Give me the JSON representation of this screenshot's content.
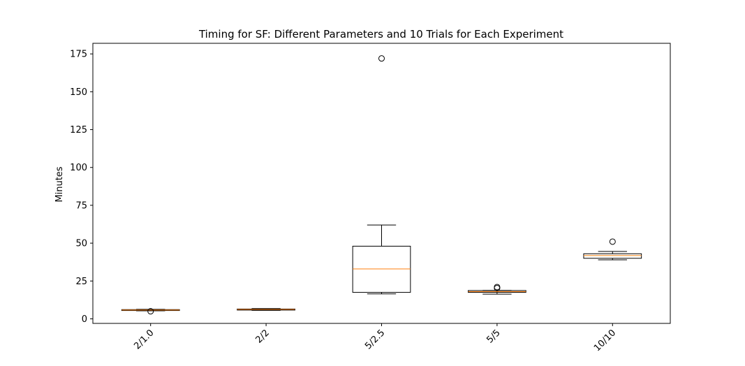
{
  "chart_data": {
    "type": "box",
    "title": "Timing for SF: Different Parameters and 10 Trials for Each Experiment",
    "xlabel": "",
    "ylabel": "Minutes",
    "ylim": [
      -3,
      182
    ],
    "yticks": [
      0,
      25,
      50,
      75,
      100,
      125,
      150,
      175
    ],
    "grid": false,
    "categories": [
      "2/1.0",
      "2/2",
      "5/2.5",
      "5/5",
      "10/10"
    ],
    "series": [
      {
        "boxes": [
          {
            "category": "2/1.0",
            "whisker_low": 5.3,
            "q1": 5.5,
            "median": 5.8,
            "q3": 6.1,
            "whisker_high": 6.3,
            "outliers": [
              5.0
            ]
          },
          {
            "category": "2/2",
            "whisker_low": 5.6,
            "q1": 5.8,
            "median": 6.2,
            "q3": 6.5,
            "whisker_high": 6.8,
            "outliers": []
          },
          {
            "category": "5/2.5",
            "whisker_low": 16.5,
            "q1": 17.5,
            "median": 33.0,
            "q3": 48.0,
            "whisker_high": 62.0,
            "outliers": [
              172.0
            ]
          },
          {
            "category": "5/5",
            "whisker_low": 16.3,
            "q1": 17.5,
            "median": 18.0,
            "q3": 18.7,
            "whisker_high": 18.8,
            "outliers": [
              20.3,
              21.0
            ]
          },
          {
            "category": "10/10",
            "whisker_low": 39.0,
            "q1": 40.0,
            "median": 41.8,
            "q3": 43.0,
            "whisker_high": 44.5,
            "outliers": [
              51.0
            ]
          }
        ]
      }
    ],
    "colors": {
      "box": "#000000",
      "median": "#ff7f0e",
      "outlier": "#000000"
    }
  }
}
